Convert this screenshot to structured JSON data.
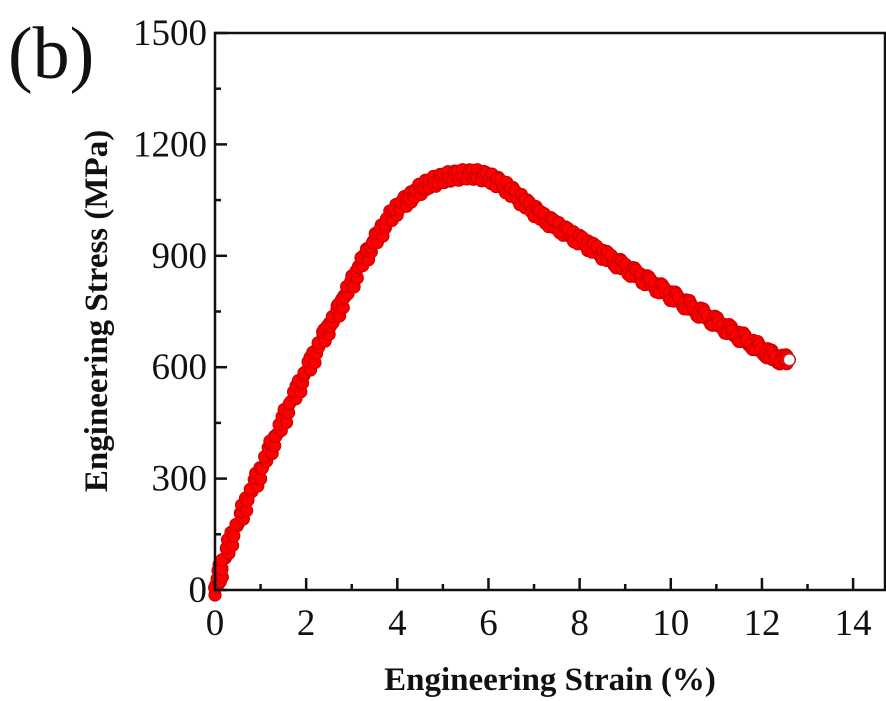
{
  "panel_label": "(b)",
  "chart_data": {
    "type": "scatter",
    "xlabel": "Engineering Strain (%)",
    "ylabel": "Engineering Stress (MPa)",
    "xlim": [
      0,
      14.7
    ],
    "ylim": [
      0,
      1500
    ],
    "xticks": [
      0,
      2,
      4,
      6,
      8,
      10,
      12,
      14
    ],
    "yticks": [
      0,
      300,
      600,
      900,
      1200,
      1500
    ],
    "grid": false,
    "marker_color": "#ff0000",
    "series": [
      {
        "points": [
          [
            0.0,
            0
          ],
          [
            0.1,
            40
          ],
          [
            0.2,
            90
          ],
          [
            0.4,
            150
          ],
          [
            0.6,
            210
          ],
          [
            0.8,
            270
          ],
          [
            1.0,
            320
          ],
          [
            1.2,
            380
          ],
          [
            1.4,
            430
          ],
          [
            1.6,
            490
          ],
          [
            1.8,
            540
          ],
          [
            2.0,
            590
          ],
          [
            2.2,
            640
          ],
          [
            2.4,
            690
          ],
          [
            2.6,
            730
          ],
          [
            2.8,
            780
          ],
          [
            3.0,
            830
          ],
          [
            3.2,
            880
          ],
          [
            3.4,
            920
          ],
          [
            3.6,
            960
          ],
          [
            3.8,
            1000
          ],
          [
            4.0,
            1030
          ],
          [
            4.2,
            1050
          ],
          [
            4.4,
            1070
          ],
          [
            4.6,
            1090
          ],
          [
            4.8,
            1100
          ],
          [
            5.0,
            1110
          ],
          [
            5.2,
            1115
          ],
          [
            5.4,
            1118
          ],
          [
            5.6,
            1120
          ],
          [
            5.8,
            1118
          ],
          [
            6.0,
            1112
          ],
          [
            6.2,
            1100
          ],
          [
            6.4,
            1085
          ],
          [
            6.6,
            1065
          ],
          [
            6.8,
            1045
          ],
          [
            7.0,
            1025
          ],
          [
            7.2,
            1005
          ],
          [
            7.4,
            990
          ],
          [
            7.6,
            975
          ],
          [
            7.8,
            960
          ],
          [
            8.0,
            945
          ],
          [
            8.2,
            930
          ],
          [
            8.4,
            915
          ],
          [
            8.6,
            900
          ],
          [
            8.8,
            885
          ],
          [
            9.0,
            870
          ],
          [
            9.2,
            855
          ],
          [
            9.4,
            840
          ],
          [
            9.6,
            825
          ],
          [
            9.8,
            810
          ],
          [
            10.0,
            795
          ],
          [
            10.2,
            780
          ],
          [
            10.4,
            765
          ],
          [
            10.6,
            750
          ],
          [
            10.8,
            735
          ],
          [
            11.0,
            720
          ],
          [
            11.2,
            705
          ],
          [
            11.4,
            690
          ],
          [
            11.6,
            675
          ],
          [
            11.8,
            660
          ],
          [
            12.0,
            645
          ],
          [
            12.2,
            630
          ],
          [
            12.4,
            620
          ],
          [
            12.6,
            620
          ]
        ]
      }
    ]
  }
}
